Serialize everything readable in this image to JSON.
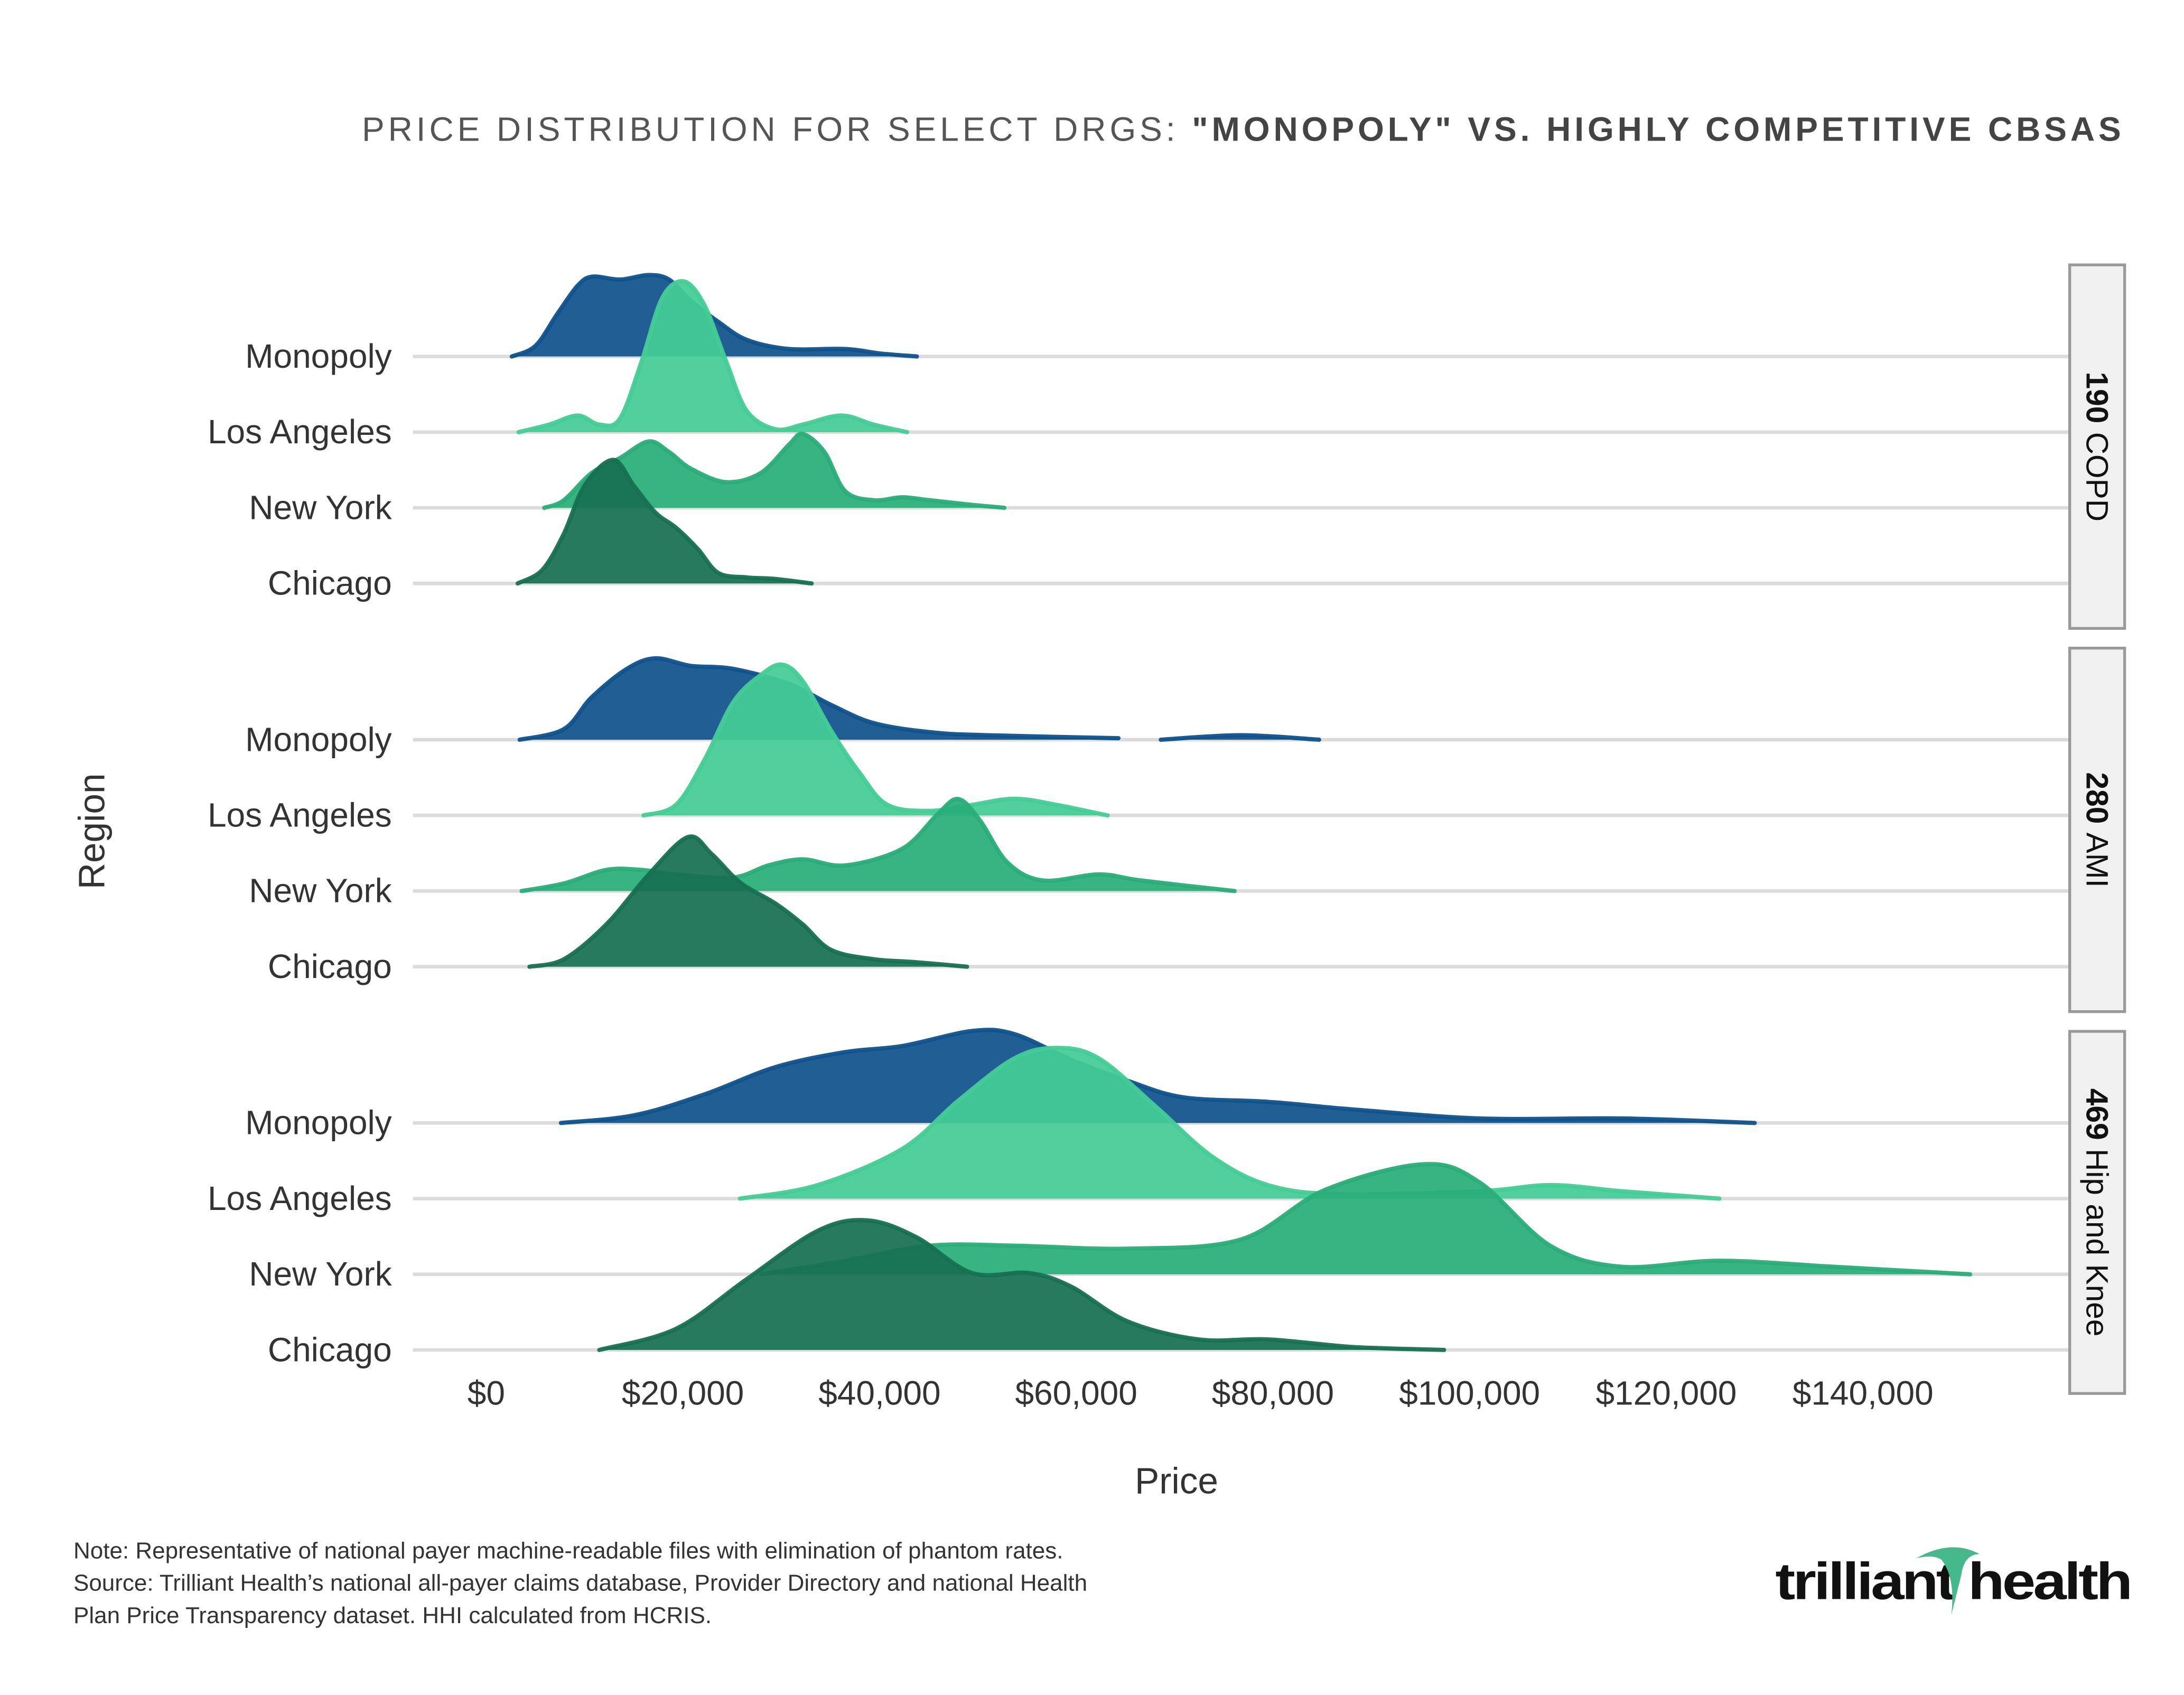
{
  "chart_data": {
    "type": "ridgeline",
    "title_prefix": "PRICE DISTRIBUTION FOR SELECT DRGS: ",
    "title_bold": "\"MONOPOLY\" VS. HIGHLY COMPETITIVE CBSAS",
    "xlabel": "Price",
    "ylabel": "Region",
    "xlim": [
      0,
      150000
    ],
    "x_ticks": [
      0,
      20000,
      40000,
      60000,
      80000,
      100000,
      120000,
      140000
    ],
    "x_tick_labels": [
      "$0",
      "$20,000",
      "$40,000",
      "$60,000",
      "$80,000",
      "$100,000",
      "$120,000",
      "$140,000"
    ],
    "grid": true,
    "regions": [
      "Monopoly",
      "Los Angeles",
      "New York",
      "Chicago"
    ],
    "colors": {
      "Monopoly": "#0f528c",
      "Los Angeles": "#44cc97",
      "New York": "#29ad79",
      "Chicago": "#177052"
    },
    "panels": [
      {
        "code": "190",
        "name": " COPD",
        "series": [
          {
            "region": "Monopoly",
            "segments": [
              [
                [
                  2600,
                  0
                ],
                [
                  5000,
                  0.07
                ],
                [
                  7200,
                  0.28
                ],
                [
                  9300,
                  0.47
                ],
                [
                  10800,
                  0.53
                ],
                [
                  13600,
                  0.51
                ],
                [
                  16500,
                  0.54
                ],
                [
                  18600,
                  0.51
                ],
                [
                  20800,
                  0.37
                ],
                [
                  23600,
                  0.23
                ],
                [
                  26500,
                  0.11
                ],
                [
                  30800,
                  0.05
                ],
                [
                  36500,
                  0.05
                ],
                [
                  40100,
                  0.02
                ],
                [
                  43800,
                  0
                ]
              ]
            ]
          },
          {
            "region": "Los Angeles",
            "segments": [
              [
                [
                  3300,
                  0
                ],
                [
                  6400,
                  0.05
                ],
                [
                  9300,
                  0.11
                ],
                [
                  11500,
                  0.05
                ],
                [
                  13600,
                  0.09
                ],
                [
                  15800,
                  0.47
                ],
                [
                  17900,
                  0.89
                ],
                [
                  20100,
                  1
                ],
                [
                  22200,
                  0.84
                ],
                [
                  24400,
                  0.47
                ],
                [
                  26500,
                  0.14
                ],
                [
                  29400,
                  0.02
                ],
                [
                  32200,
                  0.05
                ],
                [
                  36100,
                  0.11
                ],
                [
                  39400,
                  0.05
                ],
                [
                  42800,
                  0
                ]
              ]
            ]
          },
          {
            "region": "New York",
            "segments": [
              [
                [
                  5900,
                  0
                ],
                [
                  7900,
                  0.05
                ],
                [
                  10700,
                  0.23
                ],
                [
                  13600,
                  0.33
                ],
                [
                  16500,
                  0.44
                ],
                [
                  18600,
                  0.37
                ],
                [
                  20800,
                  0.26
                ],
                [
                  24400,
                  0.17
                ],
                [
                  27900,
                  0.23
                ],
                [
                  30800,
                  0.42
                ],
                [
                  32200,
                  0.49
                ],
                [
                  34400,
                  0.37
                ],
                [
                  36500,
                  0.11
                ],
                [
                  39400,
                  0.05
                ],
                [
                  42300,
                  0.07
                ],
                [
                  45100,
                  0.05
                ],
                [
                  49400,
                  0.02
                ],
                [
                  52700,
                  0
                ]
              ]
            ]
          },
          {
            "region": "Chicago",
            "segments": [
              [
                [
                  3200,
                  0
                ],
                [
                  5700,
                  0.09
                ],
                [
                  7900,
                  0.33
                ],
                [
                  10000,
                  0.65
                ],
                [
                  12900,
                  0.82
                ],
                [
                  15000,
                  0.65
                ],
                [
                  17200,
                  0.47
                ],
                [
                  19300,
                  0.37
                ],
                [
                  21500,
                  0.23
                ],
                [
                  23600,
                  0.07
                ],
                [
                  26500,
                  0.04
                ],
                [
                  29400,
                  0.03
                ],
                [
                  33100,
                  0
                ]
              ]
            ]
          }
        ]
      },
      {
        "code": "280",
        "name": " AMI",
        "series": [
          {
            "region": "Monopoly",
            "segments": [
              [
                [
                  3400,
                  0
                ],
                [
                  7900,
                  0.07
                ],
                [
                  10700,
                  0.28
                ],
                [
                  14300,
                  0.47
                ],
                [
                  17200,
                  0.54
                ],
                [
                  20800,
                  0.49
                ],
                [
                  25100,
                  0.47
                ],
                [
                  30800,
                  0.37
                ],
                [
                  35100,
                  0.23
                ],
                [
                  39400,
                  0.11
                ],
                [
                  45100,
                  0.05
                ],
                [
                  50900,
                  0.03
                ],
                [
                  64300,
                  0.01
                ]
              ],
              [
                [
                  68600,
                  0
                ],
                [
                  76700,
                  0.03
                ],
                [
                  84700,
                  0
                ]
              ]
            ]
          },
          {
            "region": "Los Angeles",
            "segments": [
              [
                [
                  16000,
                  0
                ],
                [
                  19300,
                  0.07
                ],
                [
                  22200,
                  0.37
                ],
                [
                  25100,
                  0.75
                ],
                [
                  27900,
                  0.93
                ],
                [
                  30100,
                  1
                ],
                [
                  32200,
                  0.89
                ],
                [
                  35100,
                  0.56
                ],
                [
                  38000,
                  0.28
                ],
                [
                  40800,
                  0.07
                ],
                [
                  45100,
                  0.03
                ],
                [
                  49400,
                  0.07
                ],
                [
                  53700,
                  0.11
                ],
                [
                  58000,
                  0.07
                ],
                [
                  63200,
                  0
                ]
              ]
            ]
          },
          {
            "region": "New York",
            "segments": [
              [
                [
                  3600,
                  0
                ],
                [
                  7900,
                  0.05
                ],
                [
                  12200,
                  0.14
                ],
                [
                  15800,
                  0.14
                ],
                [
                  19300,
                  0.11
                ],
                [
                  25100,
                  0.09
                ],
                [
                  28700,
                  0.17
                ],
                [
                  32200,
                  0.21
                ],
                [
                  36500,
                  0.17
                ],
                [
                  42300,
                  0.28
                ],
                [
                  45900,
                  0.51
                ],
                [
                  48000,
                  0.61
                ],
                [
                  50200,
                  0.47
                ],
                [
                  53000,
                  0.19
                ],
                [
                  56600,
                  0.07
                ],
                [
                  62300,
                  0.11
                ],
                [
                  66600,
                  0.07
                ],
                [
                  76100,
                  0
                ]
              ]
            ]
          },
          {
            "region": "Chicago",
            "segments": [
              [
                [
                  4400,
                  0
                ],
                [
                  7900,
                  0.05
                ],
                [
                  12200,
                  0.28
                ],
                [
                  16500,
                  0.61
                ],
                [
                  20500,
                  0.86
                ],
                [
                  22900,
                  0.75
                ],
                [
                  25800,
                  0.56
                ],
                [
                  29400,
                  0.42
                ],
                [
                  32200,
                  0.28
                ],
                [
                  35100,
                  0.11
                ],
                [
                  39400,
                  0.05
                ],
                [
                  43700,
                  0.03
                ],
                [
                  48900,
                  0
                ]
              ]
            ]
          }
        ]
      },
      {
        "code": "469",
        "name": " Hip and Knee",
        "series": [
          {
            "region": "Monopoly",
            "segments": [
              [
                [
                  7600,
                  0
                ],
                [
                  15000,
                  0.05
                ],
                [
                  22200,
                  0.19
                ],
                [
                  29400,
                  0.37
                ],
                [
                  36500,
                  0.47
                ],
                [
                  42300,
                  0.51
                ],
                [
                  49400,
                  0.61
                ],
                [
                  53700,
                  0.59
                ],
                [
                  59500,
                  0.42
                ],
                [
                  65200,
                  0.28
                ],
                [
                  70900,
                  0.17
                ],
                [
                  79500,
                  0.14
                ],
                [
                  88100,
                  0.09
                ],
                [
                  101000,
                  0.03
                ],
                [
                  115400,
                  0.03
                ],
                [
                  129000,
                  0
                ]
              ]
            ]
          },
          {
            "region": "Los Angeles",
            "segments": [
              [
                [
                  25800,
                  0
                ],
                [
                  33700,
                  0.09
                ],
                [
                  42300,
                  0.33
                ],
                [
                  48000,
                  0.65
                ],
                [
                  53700,
                  0.93
                ],
                [
                  58000,
                  1
                ],
                [
                  62300,
                  0.93
                ],
                [
                  68100,
                  0.61
                ],
                [
                  73800,
                  0.28
                ],
                [
                  79500,
                  0.09
                ],
                [
                  86700,
                  0.03
                ],
                [
                  101000,
                  0.05
                ],
                [
                  108200,
                  0.09
                ],
                [
                  115400,
                  0.05
                ],
                [
                  125400,
                  0
                ]
              ]
            ]
          },
          {
            "region": "New York",
            "segments": [
              [
                [
                  28000,
                  0
                ],
                [
                  36500,
                  0.09
                ],
                [
                  45100,
                  0.19
                ],
                [
                  53700,
                  0.19
                ],
                [
                  65200,
                  0.17
                ],
                [
                  76700,
                  0.23
                ],
                [
                  85300,
                  0.56
                ],
                [
                  95300,
                  0.73
                ],
                [
                  101000,
                  0.61
                ],
                [
                  108200,
                  0.19
                ],
                [
                  115400,
                  0.05
                ],
                [
                  125400,
                  0.09
                ],
                [
                  136900,
                  0.05
                ],
                [
                  150900,
                  0
                ]
              ]
            ]
          },
          {
            "region": "Chicago",
            "segments": [
              [
                [
                  11500,
                  0
                ],
                [
                  19300,
                  0.14
                ],
                [
                  26500,
                  0.47
                ],
                [
                  33700,
                  0.79
                ],
                [
                  38700,
                  0.86
                ],
                [
                  43700,
                  0.75
                ],
                [
                  49400,
                  0.51
                ],
                [
                  55200,
                  0.51
                ],
                [
                  59500,
                  0.42
                ],
                [
                  65200,
                  0.19
                ],
                [
                  72400,
                  0.07
                ],
                [
                  79500,
                  0.07
                ],
                [
                  88100,
                  0.02
                ],
                [
                  97400,
                  0
                ]
              ]
            ]
          }
        ]
      }
    ]
  },
  "footer": {
    "note_lines": [
      "Note: Representative of national payer machine-readable files with elimination of phantom rates.",
      "Source: Trilliant Health’s national all-payer claims database, Provider Directory and national Health",
      "Plan Price Transparency dataset. HHI calculated from HCRIS."
    ],
    "logo_text": "trilliant health"
  }
}
